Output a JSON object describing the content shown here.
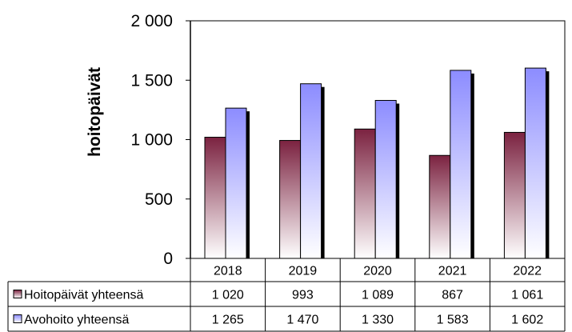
{
  "chart_data": {
    "type": "bar",
    "ylabel": "hoitopäivät",
    "xlabel": "",
    "categories": [
      "2018",
      "2019",
      "2020",
      "2021",
      "2022"
    ],
    "ylim": [
      0,
      2000
    ],
    "yticks": [
      0,
      500,
      1000,
      1500,
      2000
    ],
    "ytick_labels": [
      "0",
      "500",
      "1 000",
      "1 500",
      "2 000"
    ],
    "grid": false,
    "legend": "data table below chart",
    "series": [
      {
        "name": "Hoitopäivät yhteensä",
        "values": [
          1020,
          993,
          1089,
          867,
          1061
        ],
        "value_labels": [
          "1 020",
          "993",
          "1 089",
          "867",
          "1 061"
        ],
        "color_top": "#7b2240",
        "color_bottom": "#ffffff"
      },
      {
        "name": "Avohoito yhteensä",
        "values": [
          1265,
          1470,
          1330,
          1583,
          1602
        ],
        "value_labels": [
          "1 265",
          "1 470",
          "1 330",
          "1 583",
          "1 602"
        ],
        "color_top": "#8c8cff",
        "color_bottom": "#ffffff"
      }
    ]
  }
}
